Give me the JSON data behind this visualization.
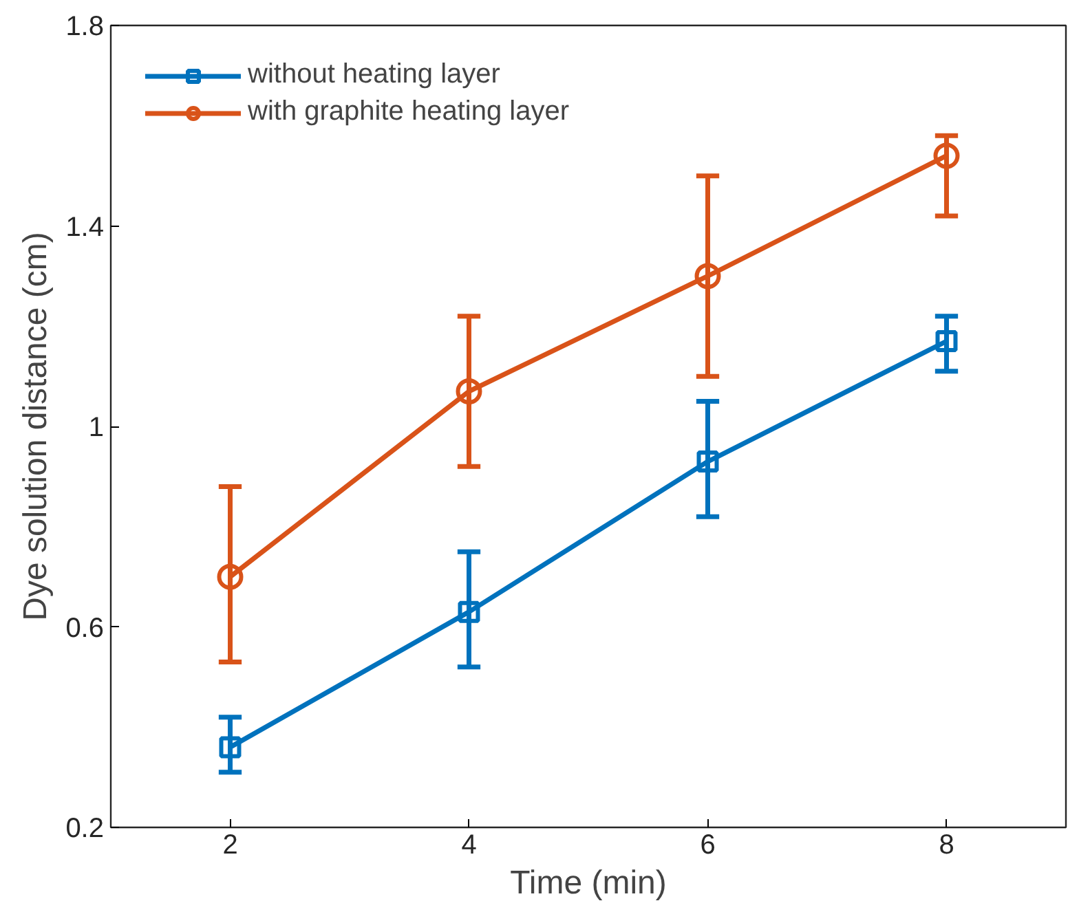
{
  "chart_data": {
    "type": "line",
    "xlabel": "Time (min)",
    "ylabel": "Dye solution distance (cm)",
    "x": [
      2,
      4,
      6,
      8
    ],
    "series": [
      {
        "name": "without heating layer",
        "color": "#0072bd",
        "marker": "square",
        "values": [
          0.36,
          0.63,
          0.93,
          1.17
        ],
        "errors": [
          [
            0.31,
            0.42
          ],
          [
            0.52,
            0.75
          ],
          [
            0.82,
            1.05
          ],
          [
            1.11,
            1.22
          ]
        ]
      },
      {
        "name": "with graphite heating layer",
        "color": "#d95319",
        "marker": "circle",
        "values": [
          0.7,
          1.07,
          1.3,
          1.54
        ],
        "errors": [
          [
            0.53,
            0.88
          ],
          [
            0.92,
            1.22
          ],
          [
            1.1,
            1.5
          ],
          [
            1.42,
            1.58
          ]
        ]
      }
    ],
    "xlim": [
      1,
      9
    ],
    "xticks": [
      2,
      4,
      6,
      8
    ],
    "ylim": [
      0.2,
      1.8
    ],
    "yticks": [
      0.2,
      0.6,
      1,
      1.4,
      1.8
    ],
    "grid": false,
    "legend": "top left",
    "line_style": "solid"
  }
}
